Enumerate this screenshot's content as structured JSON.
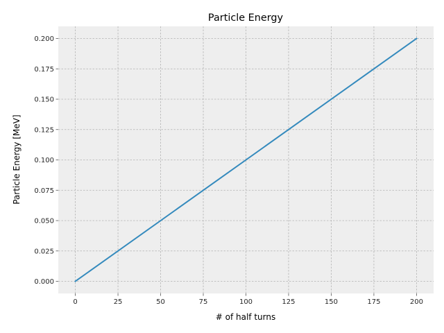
{
  "chart_data": {
    "type": "line",
    "title": "Particle Energy",
    "xlabel": "# of half turns",
    "ylabel": "Particle Energy [MeV]",
    "xlim": [
      -10,
      210
    ],
    "ylim": [
      -0.01,
      0.21
    ],
    "xticks": [
      0,
      25,
      50,
      75,
      100,
      125,
      150,
      175,
      200
    ],
    "xtick_labels": [
      "0",
      "25",
      "50",
      "75",
      "100",
      "125",
      "150",
      "175",
      "200"
    ],
    "yticks": [
      0.0,
      0.025,
      0.05,
      0.075,
      0.1,
      0.125,
      0.15,
      0.175,
      0.2
    ],
    "ytick_labels": [
      "0.000",
      "0.025",
      "0.050",
      "0.075",
      "0.100",
      "0.125",
      "0.150",
      "0.175",
      "0.200"
    ],
    "grid": true,
    "series": [
      {
        "color": "#348abd",
        "x": [
          0,
          200
        ],
        "y": [
          0.0,
          0.2
        ]
      }
    ]
  }
}
